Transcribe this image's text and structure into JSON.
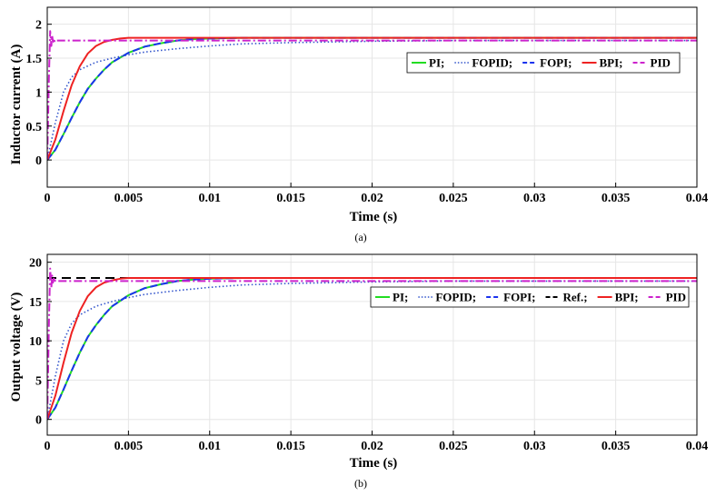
{
  "colors": {
    "PI": "#22dd22",
    "FOPID": "#3355cc",
    "FOPI": "#1a33ee",
    "BPI": "#ee2222",
    "PID": "#cc22cc",
    "Ref.": "#000000"
  },
  "chart_data": [
    {
      "type": "line",
      "caption": "(a)",
      "xlabel": "Time (s)",
      "ylabel": "Inductor current (A)",
      "xlim": [
        0,
        0.04
      ],
      "ylim": [
        -0.4,
        2.25
      ],
      "xticks": [
        0,
        0.005,
        0.01,
        0.015,
        0.02,
        0.025,
        0.03,
        0.035,
        0.04
      ],
      "xtick_labels": [
        "0",
        "0.005",
        "0.01",
        "0.015",
        "0.02",
        "0.025",
        "0.03",
        "0.035",
        "0.04"
      ],
      "yticks": [
        0,
        0.5,
        1,
        1.5,
        2
      ],
      "ytick_labels": [
        "0",
        "0.5",
        "1",
        "1.5",
        "2"
      ],
      "grid": true,
      "legend_position": "upper-right",
      "legend": [
        "PI;",
        "FOPID;",
        "FOPI;",
        "BPI;",
        "PID"
      ],
      "series": [
        {
          "name": "PI",
          "style": "solid",
          "x": [
            0,
            0.0005,
            0.001,
            0.0015,
            0.002,
            0.0025,
            0.003,
            0.0035,
            0.004,
            0.005,
            0.006,
            0.007,
            0.008,
            0.009,
            0.01,
            0.012,
            0.015,
            0.02,
            0.03,
            0.04
          ],
          "y": [
            0,
            0.15,
            0.38,
            0.62,
            0.85,
            1.05,
            1.2,
            1.33,
            1.44,
            1.58,
            1.67,
            1.72,
            1.76,
            1.78,
            1.79,
            1.8,
            1.8,
            1.8,
            1.8,
            1.8
          ]
        },
        {
          "name": "FOPID",
          "style": "dotted",
          "x": [
            0,
            0.0005,
            0.001,
            0.0015,
            0.002,
            0.003,
            0.004,
            0.005,
            0.006,
            0.008,
            0.01,
            0.012,
            0.015,
            0.02,
            0.025,
            0.03,
            0.035,
            0.04
          ],
          "y": [
            0,
            0.55,
            1.0,
            1.22,
            1.33,
            1.44,
            1.5,
            1.55,
            1.59,
            1.64,
            1.68,
            1.71,
            1.73,
            1.75,
            1.76,
            1.76,
            1.76,
            1.76
          ]
        },
        {
          "name": "FOPI",
          "style": "dashed",
          "x": [
            0,
            0.0005,
            0.001,
            0.0015,
            0.002,
            0.0025,
            0.003,
            0.0035,
            0.004,
            0.005,
            0.006,
            0.007,
            0.008,
            0.009,
            0.01,
            0.012,
            0.015,
            0.02,
            0.03,
            0.04
          ],
          "y": [
            0,
            0.15,
            0.38,
            0.62,
            0.85,
            1.05,
            1.2,
            1.33,
            1.44,
            1.58,
            1.67,
            1.72,
            1.76,
            1.78,
            1.79,
            1.8,
            1.8,
            1.8,
            1.8,
            1.8
          ]
        },
        {
          "name": "BPI",
          "style": "solid",
          "x": [
            0,
            0.0005,
            0.001,
            0.0015,
            0.002,
            0.0025,
            0.003,
            0.0035,
            0.004,
            0.0045,
            0.005,
            0.006,
            0.008,
            0.01,
            0.02,
            0.03,
            0.04
          ],
          "y": [
            0,
            0.3,
            0.72,
            1.1,
            1.38,
            1.57,
            1.68,
            1.74,
            1.77,
            1.79,
            1.8,
            1.8,
            1.8,
            1.8,
            1.8,
            1.8,
            1.8
          ]
        },
        {
          "name": "PID",
          "style": "dashdot",
          "x": [
            0,
            0.0001,
            0.00018,
            0.00025,
            0.0003,
            0.00035,
            0.0004,
            0.00045,
            0.0005,
            0.0006,
            0.001,
            0.005,
            0.01,
            0.02,
            0.03,
            0.04
          ],
          "y": [
            0,
            1.2,
            1.9,
            1.68,
            1.83,
            1.74,
            1.79,
            1.75,
            1.77,
            1.76,
            1.76,
            1.76,
            1.76,
            1.76,
            1.76,
            1.76
          ]
        }
      ]
    },
    {
      "type": "line",
      "caption": "(b)",
      "xlabel": "Time (s)",
      "ylabel": "Output voltage (V)",
      "xlim": [
        0,
        0.04
      ],
      "ylim": [
        -2,
        21
      ],
      "xticks": [
        0,
        0.005,
        0.01,
        0.015,
        0.02,
        0.025,
        0.03,
        0.035,
        0.04
      ],
      "xtick_labels": [
        "0",
        "0.005",
        "0.01",
        "0.015",
        "0.02",
        "0.025",
        "0.03",
        "0.035",
        "0.04"
      ],
      "yticks": [
        0,
        5,
        10,
        15,
        20
      ],
      "ytick_labels": [
        "0",
        "5",
        "10",
        "15",
        "20"
      ],
      "grid": true,
      "legend_position": "upper-right",
      "legend": [
        "PI;",
        "FOPID;",
        "FOPI;",
        "Ref.;",
        "BPI;",
        "PID"
      ],
      "series": [
        {
          "name": "PI",
          "style": "solid",
          "x": [
            0,
            0.0005,
            0.001,
            0.0015,
            0.002,
            0.0025,
            0.003,
            0.0035,
            0.004,
            0.005,
            0.006,
            0.007,
            0.008,
            0.009,
            0.01,
            0.012,
            0.015,
            0.02,
            0.03,
            0.04
          ],
          "y": [
            0,
            1.5,
            3.8,
            6.2,
            8.5,
            10.5,
            12.0,
            13.3,
            14.4,
            15.8,
            16.7,
            17.2,
            17.6,
            17.8,
            17.9,
            18.0,
            18.0,
            18.0,
            18.0,
            18.0
          ]
        },
        {
          "name": "FOPID",
          "style": "dotted",
          "x": [
            0,
            0.0005,
            0.001,
            0.0015,
            0.002,
            0.003,
            0.004,
            0.005,
            0.006,
            0.008,
            0.01,
            0.012,
            0.015,
            0.02,
            0.025,
            0.03,
            0.035,
            0.04
          ],
          "y": [
            0,
            5.5,
            10.0,
            12.2,
            13.3,
            14.4,
            15.0,
            15.5,
            15.9,
            16.4,
            16.8,
            17.1,
            17.3,
            17.5,
            17.6,
            17.6,
            17.6,
            17.6
          ]
        },
        {
          "name": "FOPI",
          "style": "dashed",
          "x": [
            0,
            0.0005,
            0.001,
            0.0015,
            0.002,
            0.0025,
            0.003,
            0.0035,
            0.004,
            0.005,
            0.006,
            0.007,
            0.008,
            0.009,
            0.01,
            0.012,
            0.015,
            0.02,
            0.03,
            0.04
          ],
          "y": [
            0,
            1.5,
            3.8,
            6.2,
            8.5,
            10.5,
            12.0,
            13.3,
            14.4,
            15.8,
            16.7,
            17.2,
            17.6,
            17.8,
            17.9,
            18.0,
            18.0,
            18.0,
            18.0,
            18.0
          ]
        },
        {
          "name": "Ref.",
          "style": "longdash",
          "x": [
            0,
            0.005
          ],
          "y": [
            18.0,
            18.0
          ]
        },
        {
          "name": "BPI",
          "style": "solid",
          "x": [
            0,
            0.0005,
            0.001,
            0.0015,
            0.002,
            0.0025,
            0.003,
            0.0035,
            0.004,
            0.0045,
            0.005,
            0.006,
            0.008,
            0.01,
            0.02,
            0.03,
            0.04
          ],
          "y": [
            0,
            3.0,
            7.2,
            11.0,
            13.8,
            15.7,
            16.8,
            17.4,
            17.7,
            17.9,
            18.0,
            18.0,
            18.0,
            18.0,
            18.0,
            18.0,
            18.0
          ]
        },
        {
          "name": "PID",
          "style": "dashdot",
          "x": [
            0,
            0.0001,
            0.00018,
            0.00025,
            0.0003,
            0.00035,
            0.0004,
            0.00045,
            0.0005,
            0.0006,
            0.001,
            0.005,
            0.01,
            0.02,
            0.03,
            0.04
          ],
          "y": [
            0,
            12.0,
            19.2,
            16.8,
            18.3,
            17.4,
            17.9,
            17.5,
            17.7,
            17.6,
            17.6,
            17.6,
            17.6,
            17.6,
            17.6,
            17.6
          ]
        }
      ]
    }
  ]
}
